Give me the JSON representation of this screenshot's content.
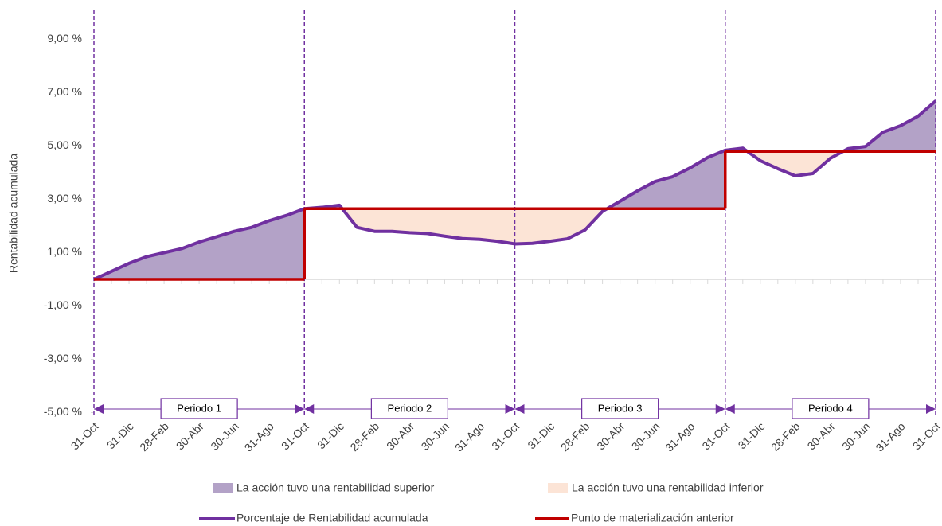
{
  "chart_data": {
    "type": "line",
    "y_label": "Rentabilidad acumulada",
    "categories": [
      "31-Oct",
      null,
      "31-Dic",
      null,
      "28-Feb",
      null,
      "30-Abr",
      null,
      "30-Jun",
      null,
      "31-Ago",
      null,
      "31-Oct",
      null,
      "31-Dic",
      null,
      "28-Feb",
      null,
      "30-Abr",
      null,
      "30-Jun",
      null,
      "31-Ago",
      null,
      "31-Oct",
      null,
      "31-Dic",
      null,
      "28-Feb",
      null,
      "30-Abr",
      null,
      "30-Jun",
      null,
      "31-Ago",
      null,
      "31-Oct",
      null,
      "31-Dic",
      null,
      "28-Feb",
      null,
      "30-Abr",
      null,
      "30-Jun",
      null,
      "31-Ago",
      null,
      "31-Oct"
    ],
    "ylim": [
      -5,
      10
    ],
    "yticks": [
      {
        "value": -5,
        "label": "-5,00 %"
      },
      {
        "value": -3,
        "label": "-3,00 %"
      },
      {
        "value": -1,
        "label": "-1,00 %"
      },
      {
        "value": 1,
        "label": "1,00 %"
      },
      {
        "value": 3,
        "label": "3,00 %"
      },
      {
        "value": 5,
        "label": "5,00 %"
      },
      {
        "value": 7,
        "label": "7,00 %"
      },
      {
        "value": 9,
        "label": "9,00 %"
      }
    ],
    "series": [
      {
        "name": "Porcentaje de Rentabilidad acumulada",
        "color": "#7030a0",
        "values": [
          0,
          0.3,
          0.6,
          0.85,
          1.0,
          1.15,
          1.4,
          1.6,
          1.8,
          1.95,
          2.2,
          2.4,
          2.65,
          2.7,
          2.78,
          1.95,
          1.8,
          1.8,
          1.75,
          1.72,
          1.62,
          1.53,
          1.5,
          1.43,
          1.33,
          1.35,
          1.43,
          1.52,
          1.85,
          2.55,
          2.93,
          3.32,
          3.67,
          3.85,
          4.18,
          4.57,
          4.84,
          4.92,
          4.45,
          4.15,
          3.88,
          3.97,
          4.54,
          4.9,
          4.98,
          5.52,
          5.76,
          6.12,
          6.69
        ]
      }
    ],
    "periods": {
      "labels": [
        "Periodo 1",
        "Periodo 2",
        "Periodo 3",
        "Periodo 4"
      ],
      "name": "Punto de materialización anterior",
      "color": "#c00000",
      "values": [
        0,
        2.65,
        2.65,
        4.8
      ]
    },
    "areas": [
      {
        "name": "La acción tuvo una rentabilidad superior",
        "color": "#b3a2c7"
      },
      {
        "name": "La acción tuvo una rentabilidad inferior",
        "color": "#fce4d6"
      }
    ]
  }
}
